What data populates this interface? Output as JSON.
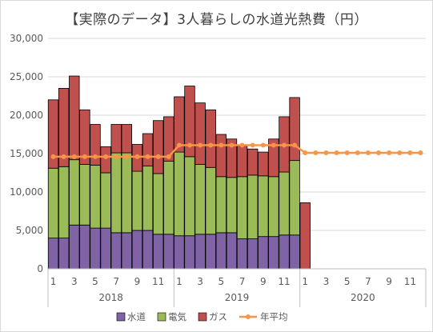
{
  "chart_data": {
    "type": "bar",
    "title": "【実際のデータ】3人暮らしの水道光熱費（円）",
    "xlabel": "",
    "ylabel": "",
    "ylim": [
      0,
      30000
    ],
    "yticks": [
      "0",
      "5,000",
      "10,000",
      "15,000",
      "20,000",
      "25,000",
      "30,000"
    ],
    "grid": true,
    "legend_position": "bottom",
    "stacked": true,
    "months": [
      "1",
      "2",
      "3",
      "4",
      "5",
      "6",
      "7",
      "8",
      "9",
      "10",
      "11",
      "12",
      "1",
      "2",
      "3",
      "4",
      "5",
      "6",
      "7",
      "8",
      "9",
      "10",
      "11",
      "12",
      "1",
      "2",
      "3",
      "4",
      "5",
      "6",
      "7",
      "8",
      "9",
      "10",
      "11",
      "12"
    ],
    "month_tick_labels": [
      "1",
      "3",
      "5",
      "7",
      "9",
      "11",
      "1",
      "3",
      "5",
      "7",
      "9",
      "11",
      "1",
      "3",
      "5",
      "7",
      "9",
      "11"
    ],
    "years": [
      "2018",
      "2019",
      "2020"
    ],
    "series": [
      {
        "name": "水道",
        "color": "#7f63a5",
        "values": [
          4000,
          4000,
          5700,
          5700,
          5300,
          5300,
          4700,
          4700,
          5000,
          5000,
          4500,
          4500,
          4300,
          4300,
          4500,
          4500,
          4700,
          4700,
          3900,
          3900,
          4200,
          4200,
          4400,
          4400,
          0,
          null,
          null,
          null,
          null,
          null,
          null,
          null,
          null,
          null,
          null,
          null
        ]
      },
      {
        "name": "電気",
        "color": "#9bbb59",
        "values": [
          9100,
          9300,
          8500,
          7900,
          8200,
          7200,
          10400,
          10400,
          7700,
          8400,
          7900,
          9500,
          10900,
          10300,
          9100,
          8700,
          7300,
          7200,
          8100,
          8300,
          7900,
          7800,
          8200,
          9700,
          0,
          null,
          null,
          null,
          null,
          null,
          null,
          null,
          null,
          null,
          null,
          null
        ]
      },
      {
        "name": "ガス",
        "color": "#c0504d",
        "values": [
          8900,
          10200,
          10900,
          7100,
          5300,
          3400,
          3700,
          3700,
          3500,
          4200,
          6900,
          5800,
          7200,
          9200,
          8000,
          7500,
          5500,
          5000,
          4000,
          3400,
          3100,
          4900,
          7200,
          8200,
          8600,
          null,
          null,
          null,
          null,
          null,
          null,
          null,
          null,
          null,
          null,
          null
        ]
      },
      {
        "name": "年平均",
        "color": "#f79646",
        "type": "line",
        "values": [
          14600,
          14600,
          14600,
          14600,
          14600,
          14600,
          14600,
          14600,
          14600,
          14600,
          14600,
          14600,
          16100,
          16100,
          16100,
          16100,
          16100,
          16100,
          16100,
          16100,
          16100,
          16100,
          16100,
          16100,
          15100,
          15100,
          15100,
          15100,
          15100,
          15100,
          15100,
          15100,
          15100,
          15100,
          15100,
          15100
        ]
      }
    ]
  }
}
